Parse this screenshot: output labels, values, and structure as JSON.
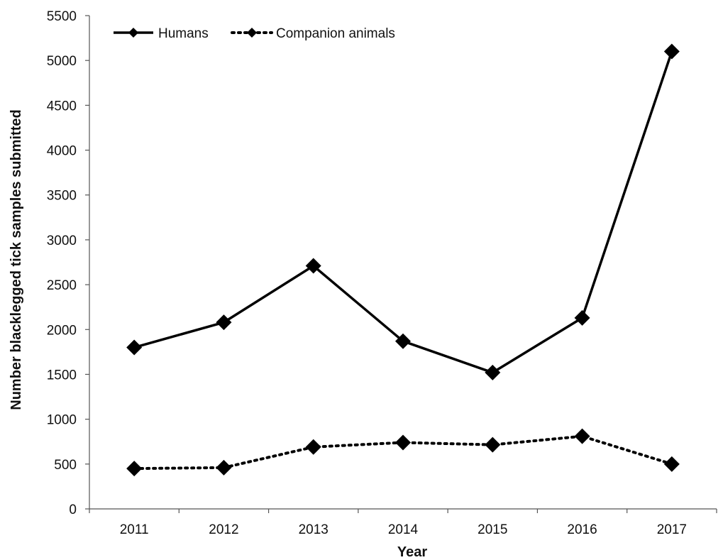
{
  "chart_data": {
    "type": "line",
    "title": "",
    "xlabel": "Year",
    "ylabel": "Number blacklegged tick samples submitted",
    "categories": [
      "2011",
      "2012",
      "2013",
      "2014",
      "2015",
      "2016",
      "2017"
    ],
    "ylim": [
      0,
      5500
    ],
    "yticks": [
      "0",
      "500",
      "1000",
      "1500",
      "2000",
      "2500",
      "3000",
      "3500",
      "4000",
      "4500",
      "5000",
      "5500"
    ],
    "grid": false,
    "legend_position": "top-left",
    "series": [
      {
        "name": "Humans",
        "line_style": "solid",
        "marker": "diamond",
        "color": "#000000",
        "values": [
          1800,
          2080,
          2710,
          1870,
          1520,
          2130,
          5100
        ]
      },
      {
        "name": "Companion animals",
        "line_style": "dotted",
        "marker": "diamond",
        "color": "#000000",
        "values": [
          450,
          460,
          690,
          740,
          715,
          810,
          500
        ]
      }
    ]
  }
}
